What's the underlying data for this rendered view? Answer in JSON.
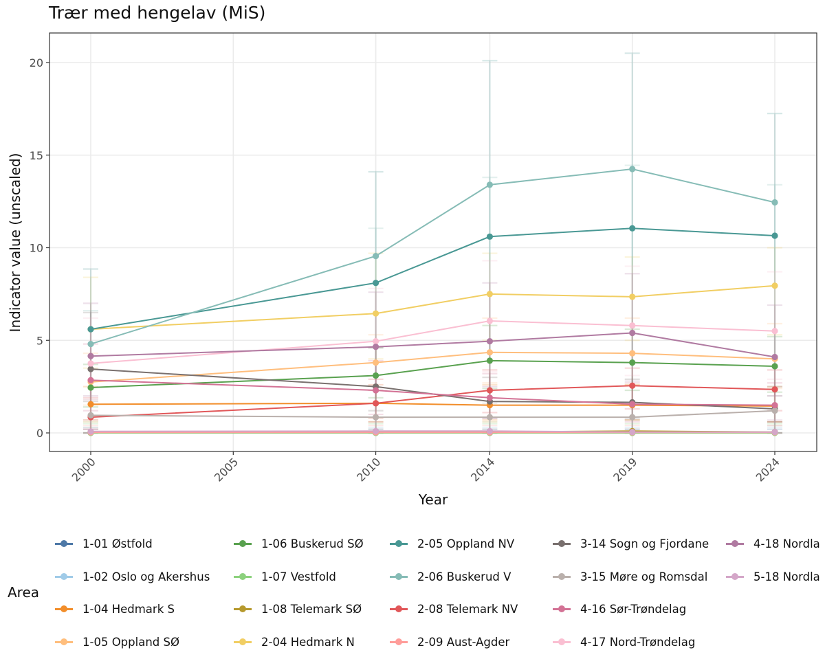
{
  "chart_data": {
    "type": "line",
    "title": "Trær med hengelav (MiS)",
    "xlabel": "Year",
    "ylabel": "Indicator value (unscaled)",
    "x": [
      2000,
      2010,
      2014,
      2019,
      2024
    ],
    "xlim": [
      1998.5,
      2025.5
    ],
    "ylim": [
      -1,
      21
    ],
    "x_ticks": [
      "2000",
      "2005",
      "2010",
      "2014",
      "2019",
      "2024"
    ],
    "y_ticks": [
      "0",
      "5",
      "10",
      "15",
      "20"
    ],
    "grid": true,
    "error_bars": true,
    "legend_title": "Area",
    "legend_position": "bottom",
    "series": [
      {
        "name": "1-01 Østfold",
        "color": "#4e79a7",
        "values": [
          0.02,
          0.02,
          0.02,
          0.02,
          0.02
        ],
        "upper": [
          0.2,
          0.2,
          0.2,
          0.2,
          0.2
        ],
        "lower": [
          0,
          0,
          0,
          0,
          0
        ]
      },
      {
        "name": "1-02 Oslo og Akershus",
        "color": "#a0cbe8",
        "values": [
          0.03,
          0.03,
          0.03,
          0.03,
          0.03
        ],
        "upper": [
          0.3,
          0.3,
          0.3,
          0.3,
          0.3
        ],
        "lower": [
          0,
          0,
          0,
          0,
          0
        ]
      },
      {
        "name": "1-04 Hedmark S",
        "color": "#f28e2b",
        "values": [
          1.55,
          1.6,
          1.5,
          1.5,
          1.45
        ],
        "upper": [
          2.5,
          2.6,
          2.6,
          2.6,
          2.5
        ],
        "lower": [
          0.7,
          0.8,
          0.7,
          0.7,
          0.6
        ]
      },
      {
        "name": "1-05 Oppland SØ",
        "color": "#ffbe7d",
        "values": [
          2.75,
          3.8,
          4.35,
          4.3,
          4.0
        ],
        "upper": [
          4.3,
          5.3,
          6.2,
          6.2,
          5.9
        ],
        "lower": [
          1.5,
          2.3,
          2.7,
          2.6,
          2.4
        ]
      },
      {
        "name": "1-06 Buskerud SØ",
        "color": "#59a14f",
        "values": [
          2.45,
          3.1,
          3.9,
          3.8,
          3.6
        ],
        "upper": [
          3.7,
          4.6,
          5.8,
          5.6,
          5.2
        ],
        "lower": [
          1.4,
          1.9,
          2.4,
          2.3,
          2.2
        ]
      },
      {
        "name": "1-07 Vestfold",
        "color": "#8cd17d",
        "values": [
          0.0,
          0.0,
          0.0,
          0.0,
          0.0
        ],
        "upper": [
          0.5,
          0.5,
          0.5,
          0.5,
          0.5
        ],
        "lower": [
          0,
          0,
          0,
          0,
          0
        ]
      },
      {
        "name": "1-08 Telemark SØ",
        "color": "#b6992d",
        "values": [
          0.05,
          0.05,
          0.05,
          0.1,
          0.05
        ],
        "upper": [
          0.6,
          0.6,
          0.6,
          0.7,
          0.6
        ],
        "lower": [
          0,
          0,
          0,
          0,
          0
        ]
      },
      {
        "name": "2-04 Hedmark N",
        "color": "#f1ce63",
        "values": [
          5.6,
          6.45,
          7.5,
          7.35,
          7.95
        ],
        "upper": [
          8.4,
          9.7,
          9.7,
          9.5,
          10.0
        ],
        "lower": [
          3.5,
          4.0,
          5.0,
          5.0,
          5.3
        ]
      },
      {
        "name": "2-05 Oppland NV",
        "color": "#499894",
        "values": [
          5.6,
          8.1,
          10.6,
          11.05,
          10.65
        ],
        "upper": [
          8.85,
          14.1,
          20.1,
          20.5,
          17.25
        ],
        "lower": [
          0.0,
          0.0,
          0.0,
          0.0,
          0.0
        ]
      },
      {
        "name": "2-06 Buskerud V",
        "color": "#86bcb6",
        "values": [
          4.8,
          9.55,
          13.4,
          14.25,
          12.45
        ],
        "upper": [
          6.6,
          11.05,
          13.8,
          14.45,
          13.4
        ],
        "lower": [
          0.0,
          0.0,
          0.0,
          0.0,
          0.0
        ]
      },
      {
        "name": "2-08 Telemark NV",
        "color": "#e15759",
        "values": [
          0.85,
          1.6,
          2.3,
          2.55,
          2.35
        ],
        "upper": [
          1.9,
          2.9,
          3.4,
          3.5,
          3.4
        ],
        "lower": [
          0.2,
          0.6,
          1.1,
          1.3,
          1.2
        ]
      },
      {
        "name": "2-09 Aust-Agder",
        "color": "#ff9d9a",
        "values": [
          0.03,
          0.03,
          0.03,
          0.03,
          0.03
        ],
        "upper": [
          0.4,
          0.4,
          0.4,
          0.4,
          0.4
        ],
        "lower": [
          0,
          0,
          0,
          0,
          0
        ]
      },
      {
        "name": "3-14 Sogn og Fjordane",
        "color": "#79706e",
        "values": [
          3.45,
          2.5,
          1.7,
          1.65,
          1.3
        ],
        "upper": [
          6.5,
          4.6,
          3.0,
          2.9,
          2.5
        ],
        "lower": [
          1.7,
          1.2,
          0.8,
          0.8,
          0.6
        ]
      },
      {
        "name": "3-15 Møre og Romsdal",
        "color": "#bab0ac",
        "values": [
          0.95,
          0.85,
          0.85,
          0.85,
          1.2
        ],
        "upper": [
          1.8,
          1.6,
          1.6,
          1.6,
          2.0
        ],
        "lower": [
          0.3,
          0.2,
          0.2,
          0.2,
          0.4
        ]
      },
      {
        "name": "4-16 Sør-Trøndelag",
        "color": "#d37295",
        "values": [
          2.85,
          2.3,
          1.9,
          1.55,
          1.5
        ],
        "upper": [
          4.8,
          3.9,
          3.2,
          2.7,
          2.7
        ],
        "lower": [
          1.2,
          1.0,
          0.8,
          0.6,
          0.6
        ]
      },
      {
        "name": "4-17 Nord-Trøndelag",
        "color": "#fabfd2",
        "values": [
          3.75,
          4.95,
          6.05,
          5.8,
          5.5
        ],
        "upper": [
          6.2,
          7.8,
          9.3,
          9.0,
          8.7
        ],
        "lower": [
          1.8,
          2.6,
          3.3,
          3.1,
          2.9
        ]
      },
      {
        "name": "4-18 Nordla",
        "color": "#b07aa1",
        "values": [
          4.15,
          4.65,
          4.95,
          5.4,
          4.1
        ],
        "upper": [
          7.0,
          7.6,
          8.1,
          8.6,
          6.9
        ],
        "lower": [
          2.0,
          2.3,
          2.5,
          2.8,
          2.0
        ]
      },
      {
        "name": "5-18 Nordla",
        "color": "#d4a6c8",
        "values": [
          0.08,
          0.1,
          0.1,
          0.05,
          0.05
        ],
        "upper": [
          0.7,
          0.8,
          0.8,
          0.7,
          0.7
        ],
        "lower": [
          0,
          0,
          0,
          0,
          0
        ]
      }
    ]
  }
}
